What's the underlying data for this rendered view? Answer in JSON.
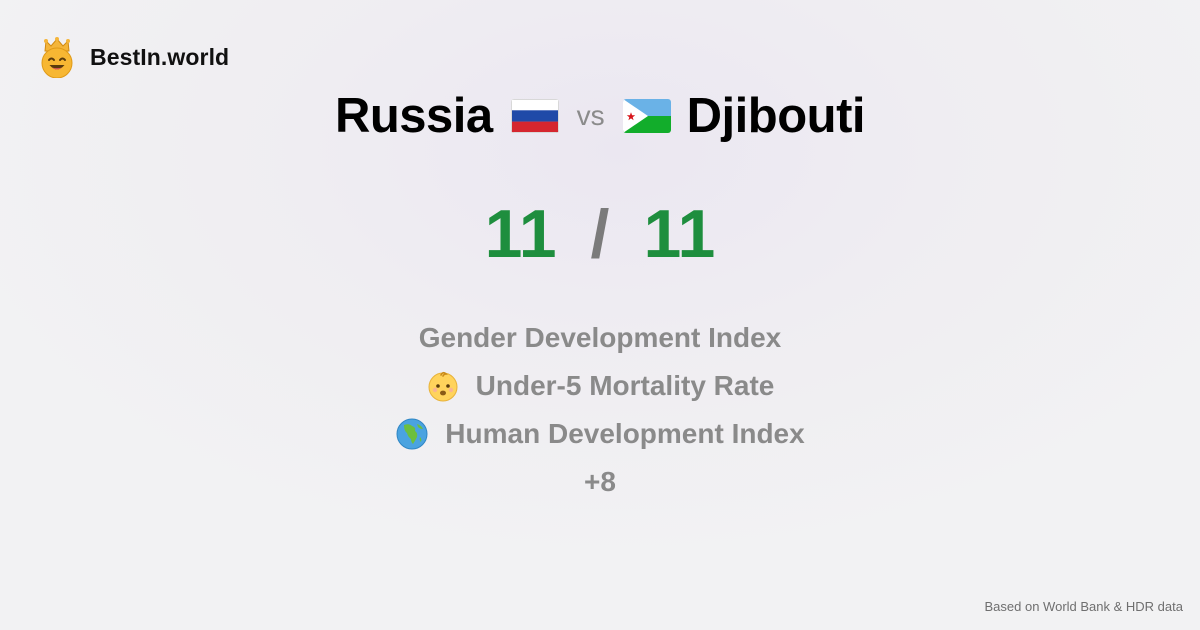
{
  "brand": {
    "name": "BestIn.world",
    "logo_icon": "king-emoji-icon"
  },
  "comparison": {
    "left_country": "Russia",
    "left_flag_icon": "flag-russia-icon",
    "separator": "vs",
    "right_country": "Djibouti",
    "right_flag_icon": "flag-djibouti-icon"
  },
  "score": {
    "left": "11",
    "separator": "/",
    "right": "11",
    "color": "#1e8e3e"
  },
  "metrics": [
    {
      "label": "Gender Development Index",
      "icon": null
    },
    {
      "label": "Under-5 Mortality Rate",
      "icon": "baby-icon"
    },
    {
      "label": "Human Development Index",
      "icon": "globe-africa-icon"
    }
  ],
  "more": "+8",
  "footer": {
    "source_note": "Based on World Bank & HDR data"
  }
}
